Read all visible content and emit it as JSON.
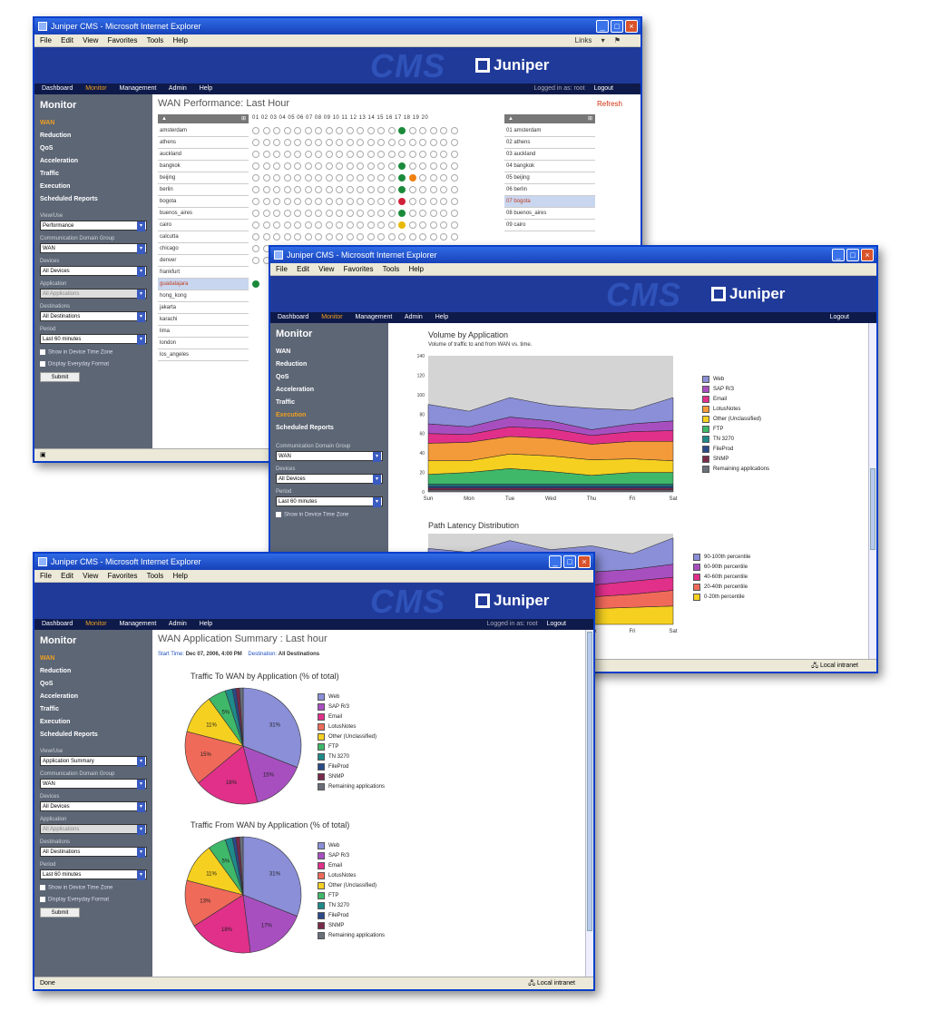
{
  "win1": {
    "title": "Juniper CMS - Microsoft Internet Explorer",
    "menu": [
      "File",
      "Edit",
      "View",
      "Favorites",
      "Tools",
      "Help"
    ],
    "links": "Links",
    "cms": "CMS",
    "brand": "Juniper",
    "nav": [
      "Dashboard",
      "Monitor",
      "Management",
      "Admin",
      "Help"
    ],
    "nav_right": "Logged in as: root",
    "logout": "Logout",
    "side_title": "Monitor",
    "side_items": [
      "WAN",
      "Reduction",
      "QoS",
      "Acceleration",
      "Traffic",
      "Execution",
      "Scheduled Reports"
    ],
    "f_view_label": "View/Use",
    "f_view": "Performance",
    "f_cg_label": "Communication Domain Group",
    "f_cg": "WAN",
    "f_dev_label": "Devices",
    "f_dev": "All Devices",
    "f_app_label": "Application",
    "f_app": "All Applications",
    "f_dest_label": "Destinations",
    "f_dest": "All Destinations",
    "f_per_label": "Period",
    "f_per": "Last 60 minutes",
    "cb1": "Show in Device Time Zone",
    "cb2": "Display Everyday Format",
    "submit": "Submit",
    "page_title": "WAN Performance: Last Hour",
    "refresh": "Refresh",
    "hours": "01 02 03 04 05 06 07 08 09 10 11 12 13 14 15 16 17 18 19 20",
    "rows": [
      "amsterdam",
      "athens",
      "auckland",
      "bangkok",
      "beijing",
      "berlin",
      "bogota",
      "buenos_aires",
      "cairo",
      "calcutta",
      "chicago",
      "denver",
      "frankfurt",
      "guadalajara",
      "hong_kong",
      "jakarta",
      "karachi",
      "lima",
      "london",
      "los_angeles"
    ],
    "right_rows": [
      "01 amsterdam",
      "02 athens",
      "03 auckland",
      "04 bangkok",
      "05 beijing",
      "06 berlin",
      "07 bogota",
      "08 buenos_aires",
      "09 cairo"
    ]
  },
  "win2": {
    "title": "Juniper CMS - Microsoft Internet Explorer",
    "menu": [
      "File",
      "Edit",
      "View",
      "Favorites",
      "Tools",
      "Help"
    ],
    "cms": "CMS",
    "brand": "Juniper",
    "nav": [
      "Dashboard",
      "Monitor",
      "Management",
      "Admin",
      "Help"
    ],
    "logout": "Logout",
    "side_title": "Monitor",
    "side_items": [
      "WAN",
      "Reduction",
      "QoS",
      "Acceleration",
      "Traffic",
      "Execution",
      "Scheduled Reports"
    ],
    "f_cg_label": "Communication Domain Group",
    "f_cg": "WAN",
    "f_dev_label": "Devices",
    "f_dev": "All Devices",
    "f_per_label": "Period",
    "f_per": "Last 60 minutes",
    "cb1": "Show in Device Time Zone",
    "chart1_title": "Volume by Application",
    "chart1_sub": "Volume of traffic to and from WAN vs. time.",
    "chart2_title": "Path Latency Distribution",
    "status": "Local intranet"
  },
  "win3": {
    "title": "Juniper CMS - Microsoft Internet Explorer",
    "menu": [
      "File",
      "Edit",
      "View",
      "Favorites",
      "Tools",
      "Help"
    ],
    "cms": "CMS",
    "brand": "Juniper",
    "nav": [
      "Dashboard",
      "Monitor",
      "Management",
      "Admin",
      "Help"
    ],
    "nav_right": "Logged in as: root",
    "logout": "Logout",
    "side_title": "Monitor",
    "side_items": [
      "WAN",
      "Reduction",
      "QoS",
      "Acceleration",
      "Traffic",
      "Execution",
      "Scheduled Reports"
    ],
    "f_view_label": "View/Use",
    "f_view": "Application Summary",
    "f_cg_label": "Communication Domain Group",
    "f_cg": "WAN",
    "f_dev_label": "Devices",
    "f_dev": "All Devices",
    "f_app_label": "Application",
    "f_app": "All Applications",
    "f_dest_label": "Destinations",
    "f_dest": "All Destinations",
    "f_per_label": "Period",
    "f_per": "Last 60 minutes",
    "cb1": "Show in Device Time Zone",
    "cb2": "Display Everyday Format",
    "submit": "Submit",
    "page_title": "WAN Application Summary : Last hour",
    "start_label": "Start Time:",
    "start_value": "Dec 07, 2006, 4:00 PM",
    "dest_label": "Destination:",
    "dest_value": "All Destinations",
    "pie1_title": "Traffic To WAN by Application (% of total)",
    "pie2_title": "Traffic From WAN by Application (% of total)",
    "status_left": "Done",
    "status": "Local intranet"
  },
  "colors": {
    "blue": "#8a8fd8",
    "purple": "#a84fc0",
    "pink": "#e0308a",
    "salmon": "#f06a5a",
    "orange": "#f39a3a",
    "yellow": "#f5d020",
    "green": "#3fb86a",
    "teal": "#1f8a8a",
    "darkblue": "#2a4a8a",
    "maroon": "#7a2a4a",
    "gray": "#6a6f7a"
  },
  "chart_data": [
    {
      "type": "area",
      "title": "Volume by Application",
      "subtitle": "Volume of traffic to and from WAN vs. time.",
      "categories": [
        "Sun",
        "Mon",
        "Tue",
        "Wed",
        "Thu",
        "Fri",
        "Sat"
      ],
      "ylim": [
        0,
        140
      ],
      "y_ticks": [
        0,
        20,
        40,
        60,
        80,
        100,
        120,
        140
      ],
      "stacked": true,
      "legend_position": "right",
      "series": [
        {
          "name": "Remaining applications",
          "color": "#6a6f7a",
          "values": [
            2,
            2,
            2,
            2,
            2,
            2,
            2
          ]
        },
        {
          "name": "SNMP",
          "color": "#7a2a4a",
          "values": [
            2,
            2,
            2,
            2,
            2,
            2,
            2
          ]
        },
        {
          "name": "FileProd",
          "color": "#2a4a8a",
          "values": [
            2,
            2,
            2,
            2,
            2,
            2,
            2
          ]
        },
        {
          "name": "TN 3270",
          "color": "#1f8a8a",
          "values": [
            2,
            2,
            2,
            2,
            2,
            2,
            2
          ]
        },
        {
          "name": "FTP",
          "color": "#3fb86a",
          "values": [
            10,
            12,
            16,
            13,
            9,
            12,
            12
          ]
        },
        {
          "name": "Other (Unclassified)",
          "color": "#f5d020",
          "values": [
            14,
            12,
            15,
            16,
            16,
            14,
            12
          ]
        },
        {
          "name": "LotusNotes",
          "color": "#f39a3a",
          "values": [
            18,
            19,
            18,
            18,
            16,
            18,
            20
          ]
        },
        {
          "name": "Email",
          "color": "#e0308a",
          "values": [
            10,
            8,
            10,
            10,
            9,
            10,
            11
          ]
        },
        {
          "name": "SAP R/3",
          "color": "#a84fc0",
          "values": [
            10,
            8,
            10,
            8,
            6,
            8,
            10
          ]
        },
        {
          "name": "Web",
          "color": "#8a8fd8",
          "values": [
            20,
            16,
            20,
            16,
            22,
            14,
            24
          ]
        }
      ]
    },
    {
      "type": "area",
      "title": "Path Latency Distribution",
      "categories": [
        "Sun",
        "Mon",
        "Tue",
        "Wed",
        "Thu",
        "Fri",
        "Sat"
      ],
      "stacked": true,
      "legend_position": "right",
      "series": [
        {
          "name": "0-20th percentile",
          "color": "#f5d020",
          "values": [
            12,
            12,
            14,
            12,
            12,
            13,
            14
          ]
        },
        {
          "name": "20-40th percentile",
          "color": "#f06a5a",
          "values": [
            10,
            10,
            12,
            10,
            9,
            10,
            12
          ]
        },
        {
          "name": "40-60th percentile",
          "color": "#e0308a",
          "values": [
            10,
            10,
            10,
            10,
            9,
            10,
            10
          ]
        },
        {
          "name": "60-90th percentile",
          "color": "#a84fc0",
          "values": [
            10,
            9,
            10,
            9,
            10,
            9,
            10
          ]
        },
        {
          "name": "90-100th percentile",
          "color": "#8a8fd8",
          "values": [
            16,
            14,
            18,
            16,
            20,
            12,
            20
          ]
        }
      ]
    },
    {
      "type": "pie",
      "title": "Traffic To WAN by Application (% of total)",
      "legend_position": "right",
      "slices": [
        {
          "name": "Web",
          "value": 31,
          "color": "#8a8fd8",
          "label": "31%"
        },
        {
          "name": "SAP R/3",
          "value": 15,
          "color": "#a84fc0",
          "label": "15%"
        },
        {
          "name": "Email",
          "value": 18,
          "color": "#e0308a",
          "label": "18%"
        },
        {
          "name": "LotusNotes",
          "value": 15,
          "color": "#f06a5a",
          "label": "15%"
        },
        {
          "name": "Other (Unclassified)",
          "value": 11,
          "color": "#f5d020",
          "label": "11%"
        },
        {
          "name": "FTP",
          "value": 5,
          "color": "#3fb86a",
          "label": "5%"
        },
        {
          "name": "TN 3270",
          "value": 2,
          "color": "#1f8a8a",
          "label": ""
        },
        {
          "name": "FileProd",
          "value": 1,
          "color": "#2a4a8a",
          "label": ""
        },
        {
          "name": "SNMP",
          "value": 1,
          "color": "#7a2a4a",
          "label": ""
        },
        {
          "name": "Remaining applications",
          "value": 1,
          "color": "#6a6f7a",
          "label": ""
        }
      ]
    },
    {
      "type": "pie",
      "title": "Traffic From WAN by Application (% of total)",
      "legend_position": "right",
      "slices": [
        {
          "name": "Web",
          "value": 31,
          "color": "#8a8fd8",
          "label": "31%"
        },
        {
          "name": "SAP R/3",
          "value": 17,
          "color": "#a84fc0",
          "label": "17%"
        },
        {
          "name": "Email",
          "value": 18,
          "color": "#e0308a",
          "label": "18%"
        },
        {
          "name": "LotusNotes",
          "value": 13,
          "color": "#f06a5a",
          "label": "13%"
        },
        {
          "name": "Other (Unclassified)",
          "value": 11,
          "color": "#f5d020",
          "label": "11%"
        },
        {
          "name": "FTP",
          "value": 5,
          "color": "#3fb86a",
          "label": "5%"
        },
        {
          "name": "TN 3270",
          "value": 2,
          "color": "#1f8a8a",
          "label": ""
        },
        {
          "name": "FileProd",
          "value": 1,
          "color": "#2a4a8a",
          "label": ""
        },
        {
          "name": "SNMP",
          "value": 1,
          "color": "#7a2a4a",
          "label": ""
        },
        {
          "name": "Remaining applications",
          "value": 1,
          "color": "#6a6f7a",
          "label": ""
        }
      ]
    }
  ]
}
